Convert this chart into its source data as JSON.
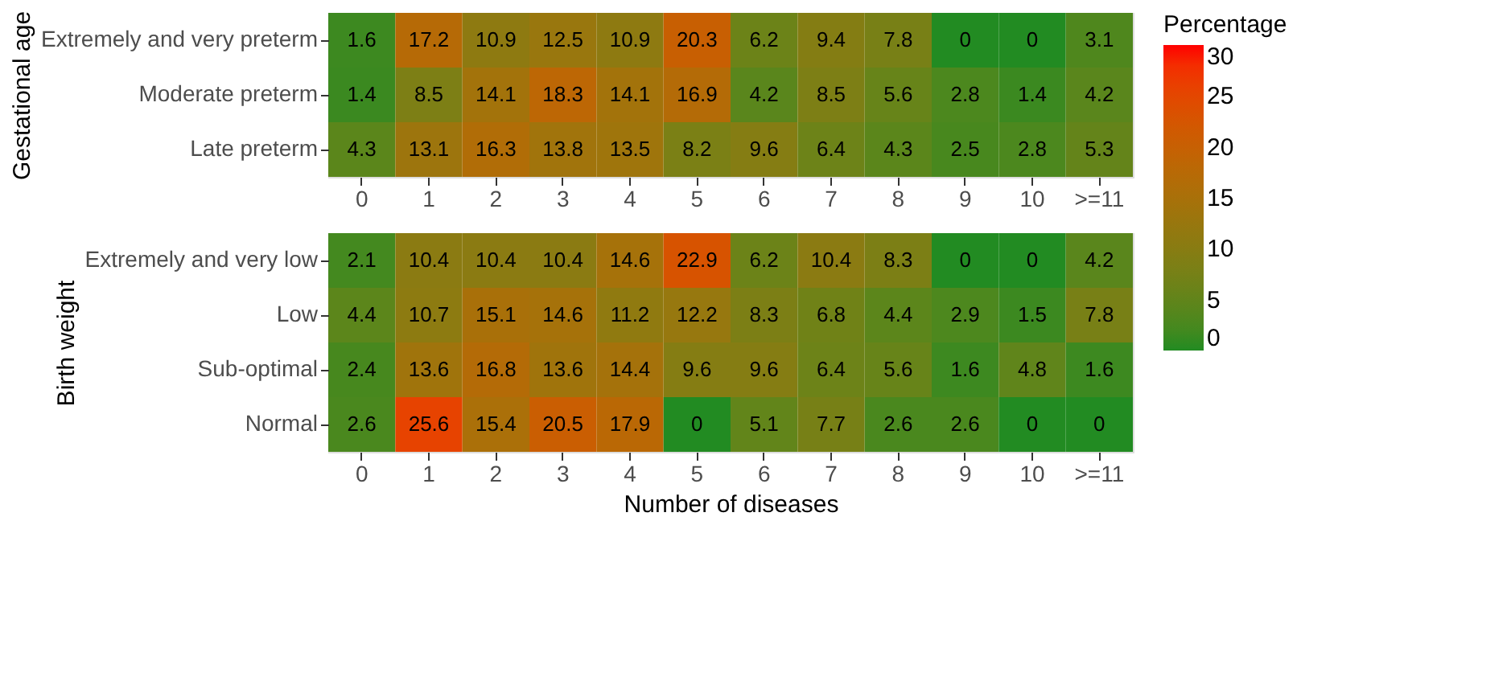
{
  "chart_data": [
    {
      "type": "heatmap",
      "ylabel": "Gestational age",
      "legend_title": "Percentage",
      "grid": false,
      "data_labels": true,
      "clim": [
        0,
        30
      ],
      "cticks": [
        0,
        5,
        10,
        15,
        20,
        25,
        30
      ],
      "categories": [
        "0",
        "1",
        "2",
        "3",
        "4",
        "5",
        "6",
        "7",
        "8",
        "9",
        "10",
        ">=11"
      ],
      "y_categories": [
        "Extremely and very preterm",
        "Moderate preterm",
        "Late preterm"
      ],
      "cells": [
        [
          1.6,
          17.2,
          10.9,
          12.5,
          10.9,
          20.3,
          6.2,
          9.4,
          7.8,
          0,
          0,
          3.1
        ],
        [
          1.4,
          8.5,
          14.1,
          18.3,
          14.1,
          16.9,
          4.2,
          8.5,
          5.6,
          2.8,
          1.4,
          4.2
        ],
        [
          4.3,
          13.1,
          16.3,
          13.8,
          13.5,
          8.2,
          9.6,
          6.4,
          4.3,
          2.5,
          2.8,
          5.3
        ]
      ]
    },
    {
      "type": "heatmap",
      "ylabel": "Birth weight",
      "xlabel": "Number of diseases",
      "grid": false,
      "data_labels": true,
      "categories": [
        "0",
        "1",
        "2",
        "3",
        "4",
        "5",
        "6",
        "7",
        "8",
        "9",
        "10",
        ">=11"
      ],
      "y_categories": [
        "Extremely and very low",
        "Low",
        "Sub-optimal",
        "Normal"
      ],
      "cells": [
        [
          2.1,
          10.4,
          10.4,
          10.4,
          14.6,
          22.9,
          6.2,
          10.4,
          8.3,
          0,
          0,
          4.2
        ],
        [
          4.4,
          10.7,
          15.1,
          14.6,
          11.2,
          12.2,
          8.3,
          6.8,
          4.4,
          2.9,
          1.5,
          7.8
        ],
        [
          2.4,
          13.6,
          16.8,
          13.6,
          14.4,
          9.6,
          9.6,
          6.4,
          5.6,
          1.6,
          4.8,
          1.6
        ],
        [
          2.6,
          25.6,
          15.4,
          20.5,
          17.9,
          0,
          5.1,
          7.7,
          2.6,
          2.6,
          0,
          0
        ]
      ]
    }
  ]
}
